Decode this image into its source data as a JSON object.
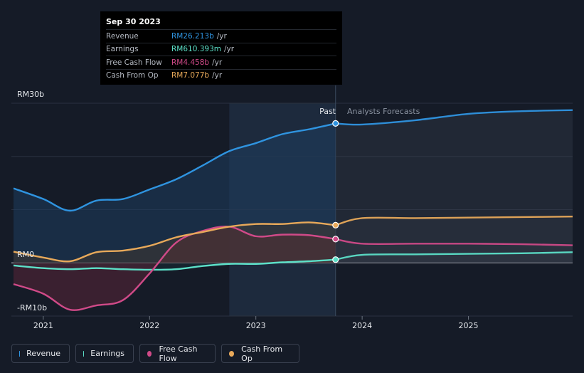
{
  "colors": {
    "revenue": "#2f94e0",
    "earnings": "#5ce0c8",
    "fcf": "#d04a88",
    "cfo": "#e8a95a"
  },
  "tooltip": {
    "date": "Sep 30 2023",
    "rows": [
      {
        "label": "Revenue",
        "value": "RM26.213b",
        "unit": "/yr",
        "color": "#2f94e0"
      },
      {
        "label": "Earnings",
        "value": "RM610.393m",
        "unit": "/yr",
        "color": "#5ce0c8"
      },
      {
        "label": "Free Cash Flow",
        "value": "RM4.458b",
        "unit": "/yr",
        "color": "#d04a88"
      },
      {
        "label": "Cash From Op",
        "value": "RM7.077b",
        "unit": "/yr",
        "color": "#e8a95a"
      }
    ]
  },
  "chart_data": {
    "type": "line",
    "ylim": [
      -10,
      30
    ],
    "x_range": [
      2020.7,
      2025.98
    ],
    "past_end": 2023.75,
    "highlight_start": 2022.75,
    "y_tick_labels": [
      {
        "label": "RM30b",
        "value": 30
      },
      {
        "label": "RM0",
        "value": 0
      },
      {
        "label": "-RM10b",
        "value": -10
      }
    ],
    "x_tick_labels": [
      {
        "label": "2021",
        "value": 2021
      },
      {
        "label": "2022",
        "value": 2022
      },
      {
        "label": "2023",
        "value": 2023
      },
      {
        "label": "2024",
        "value": 2024
      },
      {
        "label": "2025",
        "value": 2025
      }
    ],
    "past_label": "Past",
    "forecast_label": "Analysts Forecasts",
    "series": [
      {
        "name": "Revenue",
        "key": "revenue",
        "x": [
          2020.72,
          2021.0,
          2021.25,
          2021.5,
          2021.75,
          2022.0,
          2022.25,
          2022.5,
          2022.75,
          2023.0,
          2023.25,
          2023.5,
          2023.75
        ],
        "y": [
          14.0,
          12.0,
          9.8,
          11.7,
          12.0,
          13.8,
          15.7,
          18.3,
          21.0,
          22.5,
          24.2,
          25.1,
          26.2
        ],
        "forecast_x": [
          2023.75,
          2024.0,
          2024.5,
          2025.0,
          2025.5,
          2025.98
        ],
        "forecast_y": [
          26.2,
          26.0,
          26.8,
          28.0,
          28.5,
          28.7
        ]
      },
      {
        "name": "Earnings",
        "key": "earnings",
        "x": [
          2020.72,
          2021.0,
          2021.25,
          2021.5,
          2021.75,
          2022.0,
          2022.25,
          2022.5,
          2022.75,
          2023.0,
          2023.25,
          2023.5,
          2023.75
        ],
        "y": [
          -0.5,
          -1.0,
          -1.2,
          -1.0,
          -1.2,
          -1.3,
          -1.2,
          -0.6,
          -0.2,
          -0.2,
          0.1,
          0.3,
          0.61
        ],
        "forecast_x": [
          2023.75,
          2024.0,
          2024.5,
          2025.0,
          2025.5,
          2025.98
        ],
        "forecast_y": [
          0.61,
          1.5,
          1.6,
          1.7,
          1.8,
          2.0
        ]
      },
      {
        "name": "Free Cash Flow",
        "key": "fcf",
        "x": [
          2020.72,
          2021.0,
          2021.25,
          2021.5,
          2021.75,
          2022.0,
          2022.25,
          2022.5,
          2022.75,
          2023.0,
          2023.25,
          2023.5,
          2023.75
        ],
        "y": [
          -4.0,
          -5.8,
          -8.8,
          -8.0,
          -7.0,
          -2.0,
          3.8,
          6.0,
          6.8,
          5.0,
          5.3,
          5.2,
          4.46
        ],
        "forecast_x": [
          2023.75,
          2024.0,
          2024.5,
          2025.0,
          2025.5,
          2025.98
        ],
        "forecast_y": [
          4.46,
          3.6,
          3.6,
          3.6,
          3.5,
          3.3
        ]
      },
      {
        "name": "Cash From Op",
        "key": "cfo",
        "x": [
          2020.72,
          2021.0,
          2021.25,
          2021.5,
          2021.75,
          2022.0,
          2022.25,
          2022.5,
          2022.75,
          2023.0,
          2023.25,
          2023.5,
          2023.75
        ],
        "y": [
          2.1,
          1.0,
          0.3,
          2.0,
          2.3,
          3.2,
          4.8,
          5.8,
          6.8,
          7.3,
          7.3,
          7.6,
          7.08
        ],
        "forecast_x": [
          2023.75,
          2024.0,
          2024.5,
          2025.0,
          2025.5,
          2025.98
        ],
        "forecast_y": [
          7.08,
          8.4,
          8.4,
          8.5,
          8.6,
          8.7
        ]
      }
    ]
  },
  "legend": [
    {
      "label": "Revenue",
      "key": "revenue"
    },
    {
      "label": "Earnings",
      "key": "earnings"
    },
    {
      "label": "Free Cash Flow",
      "key": "fcf"
    },
    {
      "label": "Cash From Op",
      "key": "cfo"
    }
  ]
}
